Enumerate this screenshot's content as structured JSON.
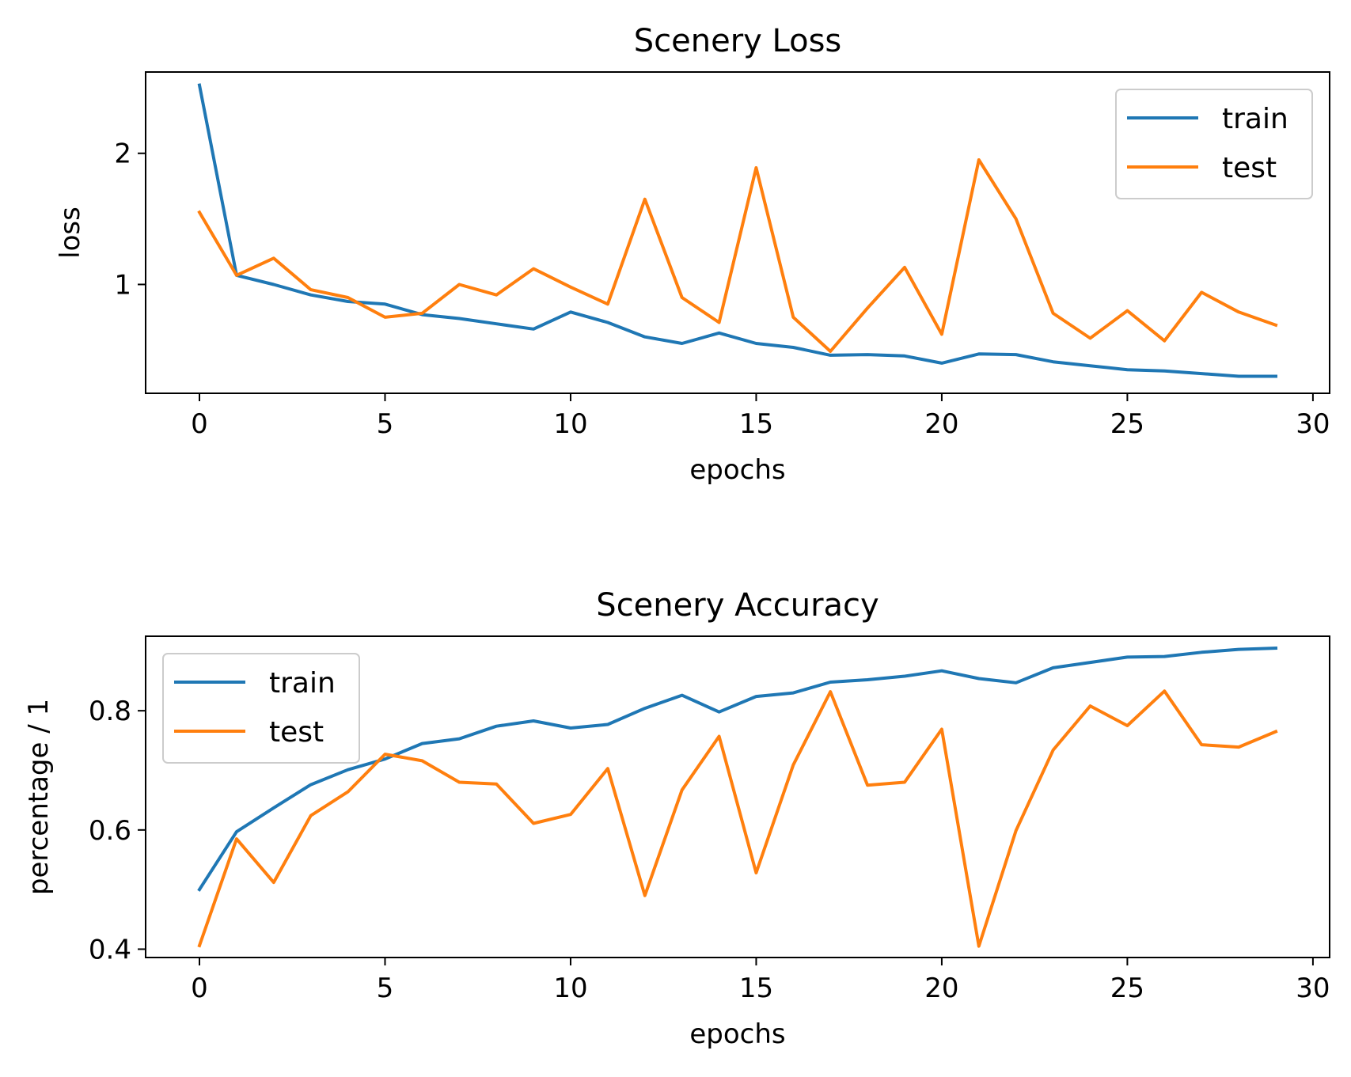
{
  "chart_data": [
    {
      "type": "line",
      "title": "Scenery Loss",
      "xlabel": "epochs",
      "ylabel": "loss",
      "xlim": [
        -1.45,
        30.45
      ],
      "ylim": [
        0.17,
        2.62
      ],
      "xticks": [
        0,
        5,
        10,
        15,
        20,
        25,
        30
      ],
      "xtick_labels": [
        "0",
        "5",
        "10",
        "15",
        "20",
        "25",
        "30"
      ],
      "yticks": [
        1,
        2
      ],
      "ytick_labels": [
        "1",
        "2"
      ],
      "grid": false,
      "legend": "upper right",
      "x": [
        0,
        1,
        2,
        3,
        4,
        5,
        6,
        7,
        8,
        9,
        10,
        11,
        12,
        13,
        14,
        15,
        16,
        17,
        18,
        19,
        20,
        21,
        22,
        23,
        24,
        25,
        26,
        27,
        28,
        29
      ],
      "series": [
        {
          "name": "train",
          "color": "#1f77b4",
          "values": [
            2.52,
            1.07,
            1.0,
            0.92,
            0.87,
            0.85,
            0.77,
            0.74,
            0.7,
            0.66,
            0.79,
            0.71,
            0.6,
            0.55,
            0.63,
            0.55,
            0.52,
            0.46,
            0.465,
            0.455,
            0.4,
            0.47,
            0.465,
            0.41,
            0.38,
            0.35,
            0.34,
            0.32,
            0.3,
            0.3
          ]
        },
        {
          "name": "test",
          "color": "#ff7f0e",
          "values": [
            1.55,
            1.07,
            1.2,
            0.96,
            0.9,
            0.75,
            0.78,
            1.0,
            0.92,
            1.12,
            0.98,
            0.85,
            1.65,
            0.9,
            0.71,
            1.89,
            0.75,
            0.49,
            0.82,
            1.13,
            0.62,
            1.95,
            1.5,
            0.78,
            0.59,
            0.8,
            0.57,
            0.94,
            0.79,
            0.69
          ]
        }
      ]
    },
    {
      "type": "line",
      "title": "Scenery Accuracy",
      "xlabel": "epochs",
      "ylabel": "percentage / 1",
      "xlim": [
        -1.45,
        30.45
      ],
      "ylim": [
        0.386,
        0.925
      ],
      "xticks": [
        0,
        5,
        10,
        15,
        20,
        25,
        30
      ],
      "xtick_labels": [
        "0",
        "5",
        "10",
        "15",
        "20",
        "25",
        "30"
      ],
      "yticks": [
        0.4,
        0.6,
        0.8
      ],
      "ytick_labels": [
        "0.4",
        "0.6",
        "0.8"
      ],
      "grid": false,
      "legend": "upper left",
      "x": [
        0,
        1,
        2,
        3,
        4,
        5,
        6,
        7,
        8,
        9,
        10,
        11,
        12,
        13,
        14,
        15,
        16,
        17,
        18,
        19,
        20,
        21,
        22,
        23,
        24,
        25,
        26,
        27,
        28,
        29
      ],
      "series": [
        {
          "name": "train",
          "color": "#1f77b4",
          "values": [
            0.5,
            0.597,
            0.637,
            0.676,
            0.701,
            0.719,
            0.745,
            0.753,
            0.774,
            0.783,
            0.771,
            0.777,
            0.804,
            0.826,
            0.798,
            0.824,
            0.83,
            0.848,
            0.852,
            0.858,
            0.867,
            0.854,
            0.847,
            0.872,
            0.881,
            0.89,
            0.891,
            0.898,
            0.903,
            0.905
          ]
        },
        {
          "name": "test",
          "color": "#ff7f0e",
          "values": [
            0.406,
            0.585,
            0.512,
            0.624,
            0.664,
            0.727,
            0.716,
            0.68,
            0.677,
            0.611,
            0.626,
            0.703,
            0.49,
            0.667,
            0.757,
            0.528,
            0.709,
            0.832,
            0.675,
            0.68,
            0.769,
            0.405,
            0.599,
            0.734,
            0.808,
            0.775,
            0.833,
            0.743,
            0.739,
            0.765
          ]
        }
      ]
    }
  ]
}
